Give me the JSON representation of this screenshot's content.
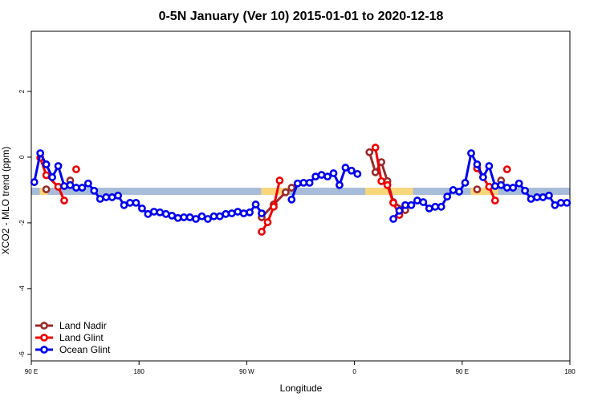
{
  "chart_data": {
    "type": "line",
    "title": "0-5N January (Ver 10)   2015-01-01 to 2020-12-18",
    "x_label": "Longitude",
    "y_label": "XCO2 - MLO trend (ppm)",
    "xlim": [
      90,
      540
    ],
    "ylim": [
      -6.2,
      3.83
    ],
    "xticks": [
      {
        "value": 90,
        "label": "90 E"
      },
      {
        "value": 180,
        "label": "180"
      },
      {
        "value": 270,
        "label": "90 W"
      },
      {
        "value": 360,
        "label": "0"
      },
      {
        "value": 450,
        "label": "90 E"
      },
      {
        "value": 540,
        "label": "180"
      }
    ],
    "yticks": [
      -6,
      -4,
      -2,
      0,
      2
    ],
    "legend": "bottom-left",
    "band": {
      "ylim": [
        -1.15,
        -0.93
      ],
      "ocean_color": "#a7bcd9",
      "land_color": "#f8d67c",
      "land": [
        [
          97,
          104
        ],
        [
          282,
          305
        ],
        [
          369,
          409
        ],
        [
          457,
          480
        ]
      ]
    },
    "series": [
      {
        "name": "Land Nadir",
        "color": "#9b2a2a",
        "x": [
          102.5,
          112.5,
          122.5,
          200,
          282.5,
          292.5,
          302.5,
          307.5,
          340,
          372.5,
          377.5,
          382.5,
          387.5,
          392.5,
          402.5,
          430,
          462.5,
          472.5,
          482.5
        ],
        "values": [
          -0.98,
          null,
          -0.71,
          null,
          -1.83,
          -1.44,
          -1.07,
          -0.93,
          null,
          0.15,
          -0.46,
          -0.15,
          -0.73,
          -1.37,
          -1.61,
          null,
          -0.98,
          null,
          -0.71
        ]
      },
      {
        "name": "Land Glint",
        "color": "#f00000",
        "x": [
          97.5,
          102.5,
          112.5,
          117.5,
          122.5,
          127.5,
          200,
          282.5,
          287.5,
          292.5,
          297.5,
          340,
          377.5,
          382.5,
          387.5,
          392.5,
          397.5,
          430,
          462.5,
          472.5,
          477.5,
          482.5,
          487.5
        ],
        "values": [
          -0.02,
          -0.55,
          -0.9,
          -1.32,
          null,
          -0.37,
          null,
          -2.27,
          -1.98,
          -1.51,
          -0.71,
          null,
          0.29,
          -0.73,
          -0.85,
          -1.39,
          -1.76,
          null,
          -0.34,
          -0.9,
          -1.32,
          null,
          -0.37
        ]
      },
      {
        "name": "Ocean Glint",
        "color": "#0000f0",
        "x": [
          92.5,
          97.5,
          102.5,
          107.5,
          112.5,
          117.5,
          122.5,
          127.5,
          132.5,
          137.5,
          142.5,
          147.5,
          152.5,
          157.5,
          162.5,
          167.5,
          172.5,
          177.5,
          182.5,
          187.5,
          192.5,
          197.5,
          202.5,
          207.5,
          212.5,
          217.5,
          222.5,
          227.5,
          232.5,
          237.5,
          242.5,
          247.5,
          252.5,
          257.5,
          262.5,
          267.5,
          272.5,
          277.5,
          282.5,
          295,
          307.5,
          312.5,
          317.5,
          322.5,
          327.5,
          332.5,
          337.5,
          342.5,
          347.5,
          352.5,
          357.5,
          362.5,
          377.5,
          392.5,
          397.5,
          402.5,
          407.5,
          412.5,
          417.5,
          422.5,
          427.5,
          432.5,
          437.5,
          442.5,
          447.5,
          452.5,
          457.5,
          462.5,
          467.5,
          472.5,
          477.5,
          482.5,
          487.5,
          492.5,
          497.5,
          502.5,
          507.5,
          512.5,
          517.5,
          522.5,
          527.5,
          532.5,
          537.5
        ],
        "values": [
          -0.76,
          0.12,
          -0.22,
          -0.61,
          -0.27,
          -0.88,
          -0.85,
          -0.93,
          -0.93,
          -0.8,
          -1.02,
          -1.27,
          -1.22,
          -1.22,
          -1.17,
          -1.46,
          -1.39,
          -1.39,
          -1.56,
          -1.73,
          -1.66,
          -1.68,
          -1.73,
          -1.78,
          -1.85,
          -1.83,
          -1.83,
          -1.88,
          -1.8,
          -1.88,
          -1.8,
          -1.8,
          -1.73,
          -1.71,
          -1.66,
          -1.71,
          -1.68,
          -1.44,
          -1.71,
          null,
          -1.29,
          -0.8,
          -0.78,
          -0.78,
          -0.59,
          -0.54,
          -0.59,
          -0.49,
          -0.85,
          -0.32,
          -0.41,
          -0.51,
          null,
          -1.88,
          -1.63,
          -1.46,
          -1.46,
          -1.32,
          -1.37,
          -1.56,
          -1.51,
          -1.51,
          -1.2,
          -1.0,
          -1.05,
          -0.78,
          0.12,
          -0.22,
          -0.61,
          -0.27,
          -0.88,
          -0.85,
          -0.93,
          -0.93,
          -0.8,
          -1.02,
          -1.27,
          -1.22,
          -1.22,
          -1.17,
          -1.46,
          -1.39,
          -1.39
        ]
      }
    ]
  }
}
